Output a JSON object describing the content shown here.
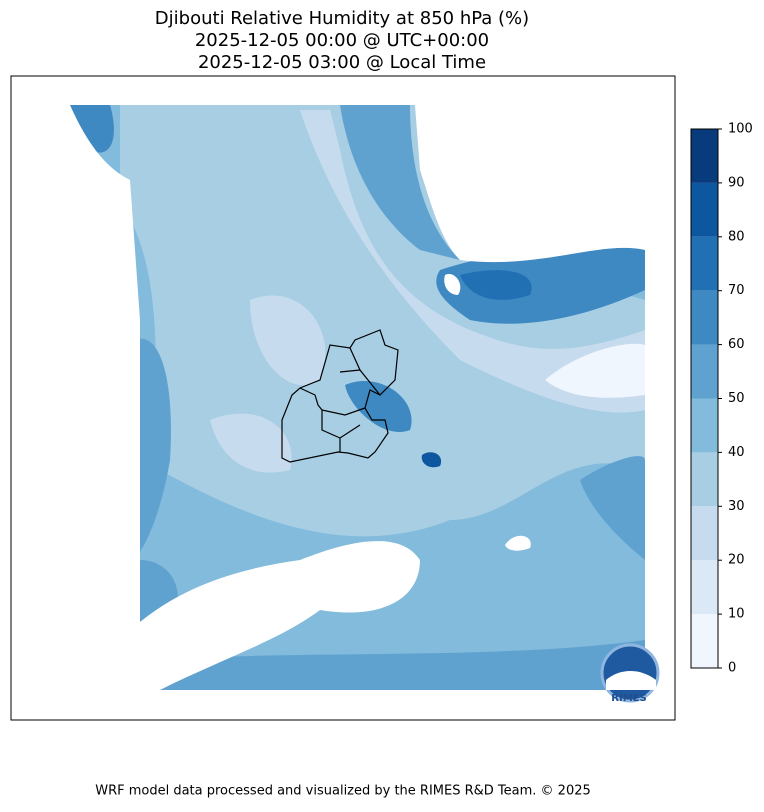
{
  "map": {
    "title": [
      "Djibouti Relative Humidity at 850 hPa (%)",
      "2025-12-05 00:00 @ UTC+00:00",
      "2025-12-05 03:00 @ Local Time"
    ],
    "colorbar": {
      "lim": [
        0,
        100
      ],
      "ticks": [
        0,
        10,
        20,
        30,
        40,
        50,
        60,
        70,
        80,
        90,
        100
      ],
      "colors": [
        "#f0f6fd",
        "#dbe8f5",
        "#c7dbef",
        "#a8cee4",
        "#82bbdb",
        "#5fa2d0",
        "#3e89c2",
        "#2270b4",
        "#0d56a0",
        "#083b7c"
      ]
    },
    "logo": "RIMES",
    "footer": "WRF model data processed and visualized by the RIMES R&D Team. © 2025"
  }
}
